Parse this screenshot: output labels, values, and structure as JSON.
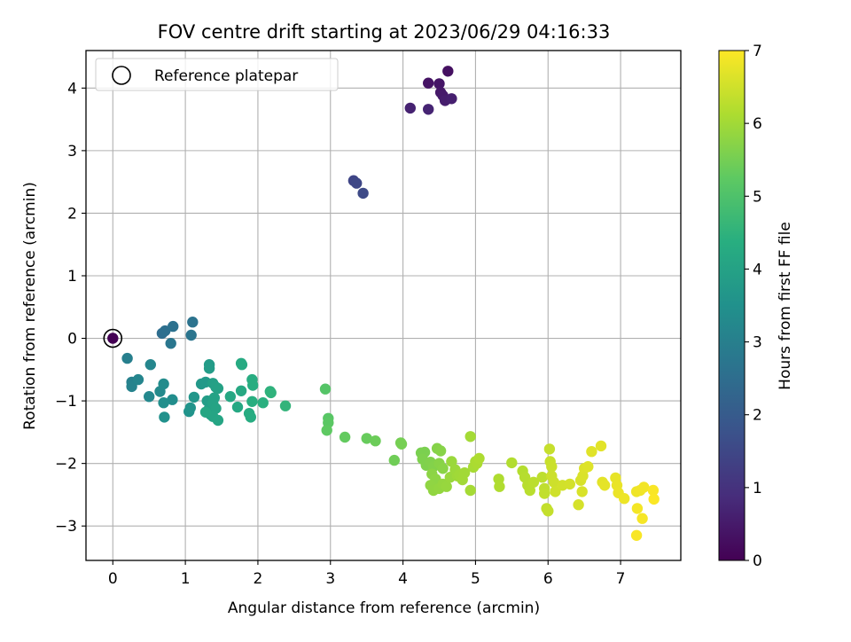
{
  "chart_data": {
    "type": "scatter",
    "title": "FOV centre drift starting at 2023/06/29 04:16:33",
    "xlabel": "Angular distance from reference (arcmin)",
    "ylabel": "Rotation from reference (arcmin)",
    "xlim": [
      -0.37,
      7.83
    ],
    "ylim": [
      -3.55,
      4.6
    ],
    "xticks": [
      0,
      1,
      2,
      3,
      4,
      5,
      6,
      7
    ],
    "yticks": [
      -3,
      -2,
      -1,
      0,
      1,
      2,
      3,
      4
    ],
    "grid": true,
    "colormap": "viridis",
    "colorbar": {
      "label": "Hours from first FF file",
      "range": [
        0,
        7
      ],
      "ticks": [
        0,
        1,
        2,
        3,
        4,
        5,
        6,
        7
      ]
    },
    "legend": {
      "position": "top-left",
      "entries": [
        "Reference platepar"
      ]
    },
    "reference_marker": {
      "x": 0,
      "y": 0
    },
    "points": [
      [
        0,
        0,
        0.0
      ],
      [
        4.62,
        4.27,
        0.3
      ],
      [
        4.35,
        4.08,
        0.35
      ],
      [
        4.5,
        4.07,
        0.4
      ],
      [
        4.52,
        3.93,
        0.45
      ],
      [
        4.55,
        3.88,
        0.5
      ],
      [
        4.58,
        3.8,
        0.55
      ],
      [
        4.67,
        3.83,
        0.6
      ],
      [
        4.1,
        3.68,
        0.65
      ],
      [
        4.35,
        3.66,
        0.7
      ],
      [
        3.32,
        2.52,
        1.45
      ],
      [
        3.36,
        2.48,
        1.5
      ],
      [
        3.45,
        2.32,
        1.55
      ],
      [
        0.68,
        0.08,
        2.5
      ],
      [
        0.72,
        0.12,
        2.55
      ],
      [
        0.83,
        0.19,
        2.6
      ],
      [
        1.1,
        0.26,
        2.65
      ],
      [
        1.08,
        0.05,
        2.7
      ],
      [
        0.8,
        -0.08,
        2.75
      ],
      [
        0.2,
        -0.32,
        3.0
      ],
      [
        0.26,
        -0.7,
        3.05
      ],
      [
        0.26,
        -0.77,
        3.1
      ],
      [
        0.35,
        -0.66,
        3.15
      ],
      [
        0.52,
        -0.42,
        3.2
      ],
      [
        0.5,
        -0.93,
        3.25
      ],
      [
        0.65,
        -0.85,
        3.3
      ],
      [
        0.7,
        -0.73,
        3.35
      ],
      [
        0.82,
        -0.98,
        3.4
      ],
      [
        0.7,
        -1.03,
        3.45
      ],
      [
        0.71,
        -1.26,
        3.5
      ],
      [
        1.05,
        -1.17,
        3.55
      ],
      [
        1.07,
        -1.11,
        3.6
      ],
      [
        1.12,
        -0.94,
        3.65
      ],
      [
        1.22,
        -0.73,
        3.7
      ],
      [
        1.28,
        -0.7,
        3.75
      ],
      [
        1.33,
        -0.42,
        3.8
      ],
      [
        1.33,
        -0.48,
        3.82
      ],
      [
        1.3,
        -1.0,
        3.85
      ],
      [
        1.32,
        -1.14,
        3.88
      ],
      [
        1.35,
        -1.22,
        3.9
      ],
      [
        1.38,
        -0.72,
        3.92
      ],
      [
        1.42,
        -0.78,
        3.95
      ],
      [
        1.45,
        -0.8,
        3.98
      ],
      [
        1.4,
        -0.95,
        4.0
      ],
      [
        1.38,
        -1.03,
        4.02
      ],
      [
        1.42,
        -1.12,
        4.05
      ],
      [
        1.38,
        -1.25,
        4.08
      ],
      [
        1.45,
        -1.31,
        4.1
      ],
      [
        1.28,
        -1.18,
        4.12
      ],
      [
        1.62,
        -0.93,
        4.15
      ],
      [
        1.72,
        -1.1,
        4.18
      ],
      [
        1.77,
        -0.84,
        4.2
      ],
      [
        1.78,
        -0.42,
        4.22
      ],
      [
        1.77,
        -0.4,
        4.25
      ],
      [
        1.88,
        -1.2,
        4.28
      ],
      [
        1.9,
        -1.26,
        4.3
      ],
      [
        1.92,
        -0.66,
        4.32
      ],
      [
        1.93,
        -0.75,
        4.35
      ],
      [
        1.92,
        -1.01,
        4.38
      ],
      [
        2.07,
        -1.03,
        4.4
      ],
      [
        2.17,
        -0.85,
        4.45
      ],
      [
        2.18,
        -0.87,
        4.5
      ],
      [
        2.38,
        -1.08,
        4.55
      ],
      [
        2.93,
        -0.81,
        5.1
      ],
      [
        2.97,
        -1.28,
        5.15
      ],
      [
        2.97,
        -1.35,
        5.2
      ],
      [
        2.95,
        -1.47,
        5.25
      ],
      [
        3.2,
        -1.58,
        5.3
      ],
      [
        3.5,
        -1.6,
        5.35
      ],
      [
        3.62,
        -1.64,
        5.4
      ],
      [
        3.88,
        -1.95,
        5.45
      ],
      [
        3.97,
        -1.67,
        5.5
      ],
      [
        3.98,
        -1.69,
        5.52
      ],
      [
        4.25,
        -1.83,
        5.55
      ],
      [
        4.3,
        -1.82,
        5.57
      ],
      [
        4.27,
        -1.93,
        5.6
      ],
      [
        4.32,
        -2.03,
        5.62
      ],
      [
        4.38,
        -1.98,
        5.64
      ],
      [
        4.42,
        -2.05,
        5.66
      ],
      [
        4.47,
        -1.76,
        5.68
      ],
      [
        4.52,
        -1.8,
        5.7
      ],
      [
        4.5,
        -2.0,
        5.72
      ],
      [
        4.55,
        -2.08,
        5.74
      ],
      [
        4.4,
        -2.17,
        5.76
      ],
      [
        4.45,
        -2.25,
        5.78
      ],
      [
        4.38,
        -2.35,
        5.8
      ],
      [
        4.42,
        -2.43,
        5.82
      ],
      [
        4.5,
        -2.4,
        5.84
      ],
      [
        4.55,
        -2.33,
        5.86
      ],
      [
        4.6,
        -2.37,
        5.88
      ],
      [
        4.65,
        -2.22,
        5.9
      ],
      [
        4.67,
        -1.97,
        5.92
      ],
      [
        4.72,
        -2.1,
        5.94
      ],
      [
        4.75,
        -2.2,
        5.96
      ],
      [
        4.78,
        -2.18,
        5.98
      ],
      [
        4.82,
        -2.26,
        6.0
      ],
      [
        4.85,
        -2.15,
        6.0
      ],
      [
        4.93,
        -1.57,
        6.02
      ],
      [
        4.93,
        -2.43,
        6.04
      ],
      [
        4.97,
        -2.06,
        6.06
      ],
      [
        5.0,
        -1.97,
        6.08
      ],
      [
        5.02,
        -2.0,
        6.1
      ],
      [
        5.05,
        -1.92,
        6.12
      ],
      [
        5.32,
        -2.25,
        6.14
      ],
      [
        5.33,
        -2.37,
        6.16
      ],
      [
        5.5,
        -1.99,
        6.18
      ],
      [
        5.65,
        -2.12,
        6.2
      ],
      [
        5.68,
        -2.22,
        6.22
      ],
      [
        5.72,
        -2.35,
        6.24
      ],
      [
        5.75,
        -2.43,
        6.26
      ],
      [
        5.8,
        -2.3,
        6.28
      ],
      [
        5.92,
        -2.22,
        6.3
      ],
      [
        5.95,
        -2.4,
        6.32
      ],
      [
        5.95,
        -2.48,
        6.34
      ],
      [
        5.98,
        -2.72,
        6.36
      ],
      [
        6.0,
        -2.76,
        6.38
      ],
      [
        6.02,
        -1.77,
        6.4
      ],
      [
        6.03,
        -1.97,
        6.42
      ],
      [
        6.05,
        -2.05,
        6.44
      ],
      [
        6.05,
        -2.2,
        6.46
      ],
      [
        6.08,
        -2.3,
        6.48
      ],
      [
        6.1,
        -2.45,
        6.5
      ],
      [
        6.2,
        -2.35,
        6.52
      ],
      [
        6.3,
        -2.33,
        6.54
      ],
      [
        6.42,
        -2.66,
        6.56
      ],
      [
        6.45,
        -2.27,
        6.58
      ],
      [
        6.47,
        -2.45,
        6.6
      ],
      [
        6.48,
        -2.2,
        6.62
      ],
      [
        6.5,
        -2.08,
        6.64
      ],
      [
        6.55,
        -2.05,
        6.66
      ],
      [
        6.6,
        -1.81,
        6.68
      ],
      [
        6.73,
        -1.72,
        6.7
      ],
      [
        6.75,
        -2.3,
        6.72
      ],
      [
        6.78,
        -2.35,
        6.74
      ],
      [
        6.93,
        -2.23,
        6.76
      ],
      [
        6.95,
        -2.35,
        6.78
      ],
      [
        6.97,
        -2.47,
        6.8
      ],
      [
        7.05,
        -2.56,
        6.82
      ],
      [
        7.22,
        -2.45,
        6.84
      ],
      [
        7.27,
        -2.43,
        6.86
      ],
      [
        7.32,
        -2.38,
        6.88
      ],
      [
        7.23,
        -2.72,
        6.9
      ],
      [
        7.3,
        -2.88,
        6.92
      ],
      [
        7.22,
        -3.15,
        6.94
      ],
      [
        7.45,
        -2.43,
        6.96
      ],
      [
        7.46,
        -2.57,
        6.98
      ]
    ]
  }
}
